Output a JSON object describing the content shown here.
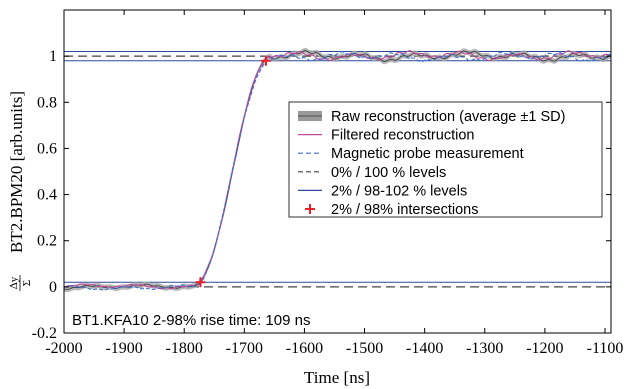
{
  "chart_data": {
    "type": "line",
    "xlabel": "Time [ns]",
    "ylabel_main": "BT2.BPM20  [arb.units]",
    "ylabel_frac_num": "Δy",
    "ylabel_frac_den": "Σ",
    "xlim": [
      -2000,
      -1090
    ],
    "ylim": [
      -0.2,
      1.2
    ],
    "x_ticks": [
      -2000,
      -1900,
      -1800,
      -1700,
      -1600,
      -1500,
      -1400,
      -1300,
      -1200,
      -1100
    ],
    "x_tick_labels": [
      "-2000",
      "-1900",
      "-1800",
      "-1700",
      "-1600",
      "-1500",
      "-1400",
      "-1300",
      "-1200",
      "-1100"
    ],
    "y_ticks": [
      -0.2,
      0,
      0.2,
      0.4,
      0.6,
      0.8,
      1
    ],
    "y_tick_labels": [
      "-0.2",
      "0",
      "0.2",
      "0.4",
      "0.6",
      "0.8",
      "1"
    ],
    "grid": false,
    "legend_position": "center-right",
    "legend": [
      {
        "label": "Raw reconstruction (average ±1 SD)",
        "style": "band",
        "color": "#9a9a9a"
      },
      {
        "label": "Filtered reconstruction",
        "style": "solid",
        "color": "#c04a9a"
      },
      {
        "label": "Magnetic probe measurement",
        "style": "dashed",
        "color": "#3a6fd0"
      },
      {
        "label": "0%  / 100 % levels",
        "style": "dashed",
        "color": "#444444"
      },
      {
        "label": "2%  / 98-102 % levels",
        "style": "solid",
        "color": "#2d4a9a"
      },
      {
        "label": "2% / 98% intersections",
        "style": "marker",
        "color": "#e8202a"
      }
    ],
    "levels": {
      "zero": 0,
      "hundred": 1,
      "two_percent": 0.02,
      "ninety_eight": 0.98,
      "hundred_two": 1.02
    },
    "intersections": [
      {
        "x": -1773,
        "y": 0.02
      },
      {
        "x": -1664,
        "y": 0.98
      }
    ],
    "step": {
      "low": 0,
      "high": 1,
      "rise_start": -1785,
      "rise_end": -1655
    },
    "annotation": "BT1.KFA10 2-98% rise time: 109 ns",
    "colors": {
      "raw_band": "#a8a8a8",
      "raw_line": "#333333",
      "filtered": "#c04a9a",
      "magnetic": "#3a6fd0",
      "levels_dashed": "#444444",
      "levels_solid": "#2d4a9a",
      "marker": "#e8202a"
    }
  }
}
